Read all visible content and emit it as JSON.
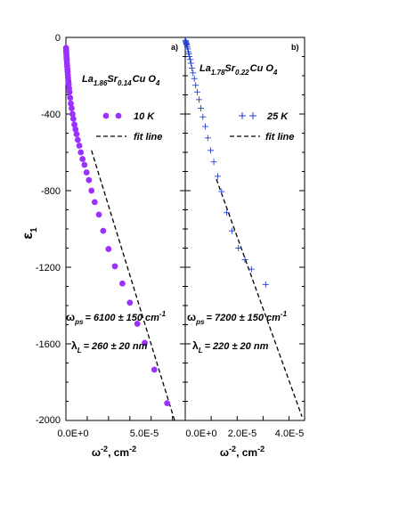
{
  "chart_data": [
    {
      "type": "scatter",
      "panel_label": "a)",
      "formula": {
        "base1": "La",
        "sub1": "1.86",
        "base2": "Sr",
        "sub2": "0.14",
        "base3": "Cu O",
        "sub3": "4"
      },
      "series": [
        {
          "name": "10 K",
          "marker": "filled-circle",
          "color": "#9b30ff",
          "x": [
            5e-08,
            1e-07,
            1.5e-07,
            2e-07,
            2.5e-07,
            3e-07,
            3.5e-07,
            4e-07,
            5e-07,
            6e-07,
            7e-07,
            8e-07,
            9e-07,
            1e-06,
            1.1e-06,
            1.2e-06,
            1.3e-06,
            1.5e-06,
            1.7e-06,
            2e-06,
            2.3e-06,
            2.7e-06,
            3.1e-06,
            3.5e-06,
            4e-06,
            4.5e-06,
            5e-06,
            5.6e-06,
            6.3e-06,
            7e-06,
            7.8e-06,
            8.7e-06,
            9.7e-06,
            1.08e-05,
            1.2e-05,
            1.35e-05,
            1.55e-05,
            1.75e-05,
            2e-05,
            2.3e-05,
            2.65e-05,
            3e-05,
            3.35e-05,
            3.7e-05,
            4.15e-05,
            4.75e-05
          ],
          "y": [
            -55,
            -65,
            -75,
            -85,
            -95,
            -105,
            -112,
            -120,
            -135,
            -150,
            -165,
            -180,
            -195,
            -210,
            -225,
            -235,
            -245,
            -265,
            -285,
            -315,
            -345,
            -370,
            -400,
            -425,
            -455,
            -480,
            -505,
            -535,
            -565,
            -600,
            -635,
            -665,
            -705,
            -745,
            -800,
            -860,
            -925,
            -1010,
            -1105,
            -1195,
            -1285,
            -1385,
            -1495,
            -1595,
            -1735,
            -1910
          ]
        },
        {
          "name": "fit line",
          "line_style": "dashed",
          "color": "#000000",
          "x": [
            1.2e-05,
            5.1e-05
          ],
          "y": [
            -590,
            -2000
          ]
        }
      ],
      "annotation1": {
        "omega": "ω",
        "sub": "ps",
        "text": "= 6100 ± 150 cm",
        "sup": "-1"
      },
      "annotation2": {
        "lambda": "λ",
        "sub": "L",
        "text": "= 260 ± 20 nm"
      },
      "x_ticks": [
        "0.0E+0",
        "5.0E-5"
      ],
      "y_ticks": [
        "0",
        "-400",
        "-800",
        "-1200",
        "-1600",
        "-2000"
      ],
      "ylabel": {
        "base": "ε",
        "sub": "1"
      },
      "xlabel": {
        "base": "ω",
        "sup1": "-2",
        "mid": ", cm",
        "sup2": "-2"
      },
      "xlim": [
        0,
        5.6e-05
      ],
      "ylim": [
        -2000,
        0
      ]
    },
    {
      "type": "scatter",
      "panel_label": "b)",
      "formula": {
        "base1": "La",
        "sub1": "1.78",
        "base2": "Sr",
        "sub2": "0.22",
        "base3": "Cu O",
        "sub3": "4"
      },
      "series": [
        {
          "name": "25 K",
          "marker": "plus",
          "color": "#1f3fd0",
          "x": [
            1e-07,
            2e-07,
            3e-07,
            4e-07,
            5e-07,
            6e-07,
            8e-07,
            1e-06,
            1.2e-06,
            1.4e-06,
            1.6e-06,
            1.9e-06,
            2.2e-06,
            2.6e-06,
            3e-06,
            3.5e-06,
            4e-06,
            4.6e-06,
            5.3e-06,
            6e-06,
            6.8e-06,
            7.7e-06,
            8.7e-06,
            9.8e-06,
            1.1e-05,
            1.25e-05,
            1.4e-05,
            1.6e-05,
            1.8e-05,
            2.05e-05,
            2.3e-05,
            2.55e-05,
            3.1e-05
          ],
          "y": [
            -15,
            -20,
            -25,
            -30,
            -35,
            -40,
            -50,
            -60,
            -75,
            -85,
            -100,
            -115,
            -135,
            -160,
            -185,
            -215,
            -250,
            -285,
            -325,
            -370,
            -415,
            -465,
            -525,
            -590,
            -650,
            -725,
            -805,
            -915,
            -1010,
            -1100,
            -1160,
            -1210,
            -1290
          ]
        },
        {
          "name": "fit line",
          "line_style": "dashed",
          "color": "#000000",
          "x": [
            1.2e-05,
            4.5e-05
          ],
          "y": [
            -740,
            -1980
          ]
        }
      ],
      "annotation1": {
        "omega": "ω",
        "sub": "ps",
        "text": "= 7200 ± 150 cm",
        "sup": "-1"
      },
      "annotation2": {
        "lambda": "λ",
        "sub": "L",
        "text": "= 220 ± 20 nm"
      },
      "x_ticks": [
        "0.0E+0",
        "2.0E-5",
        "4.0E-5"
      ],
      "xlabel": {
        "base": "ω",
        "sup1": "-2",
        "mid": ", cm",
        "sup2": "-2"
      },
      "xlim": [
        0,
        4.6e-05
      ],
      "ylim": [
        -2000,
        0
      ]
    }
  ]
}
